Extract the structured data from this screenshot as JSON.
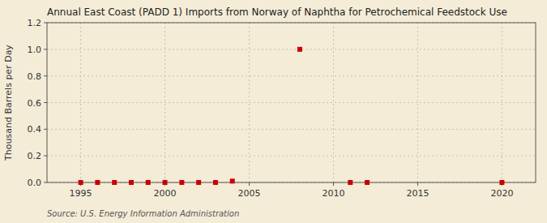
{
  "chart_data": {
    "type": "scatter",
    "title": "Annual East Coast (PADD 1) Imports from Norway of Naphtha for Petrochemical Feedstock Use",
    "y_label": "Thousand Barrels per Day",
    "source": "Source: U.S. Energy Information Administration",
    "x": [
      1995,
      1996,
      1997,
      1998,
      1999,
      2000,
      2001,
      2002,
      2003,
      2004,
      2008,
      2011,
      2012,
      2020
    ],
    "values": [
      0.0,
      0.0,
      0.0,
      0.0,
      0.0,
      0.0,
      0.0,
      0.0,
      0.0,
      0.01,
      1.0,
      0.0,
      0.0,
      0.0
    ],
    "color": "#cc0000",
    "marker": "square",
    "xlim": [
      1993,
      2022
    ],
    "xticks": [
      1995,
      2000,
      2005,
      2010,
      2015,
      2020
    ],
    "ylim": [
      0.0,
      1.2
    ],
    "yticks": [
      {
        "value": 0.0,
        "label": "0.0"
      },
      0.2,
      0.4,
      0.6,
      0.8,
      {
        "value": 1.0,
        "label": "1.0"
      },
      1.2
    ],
    "grid": true
  }
}
